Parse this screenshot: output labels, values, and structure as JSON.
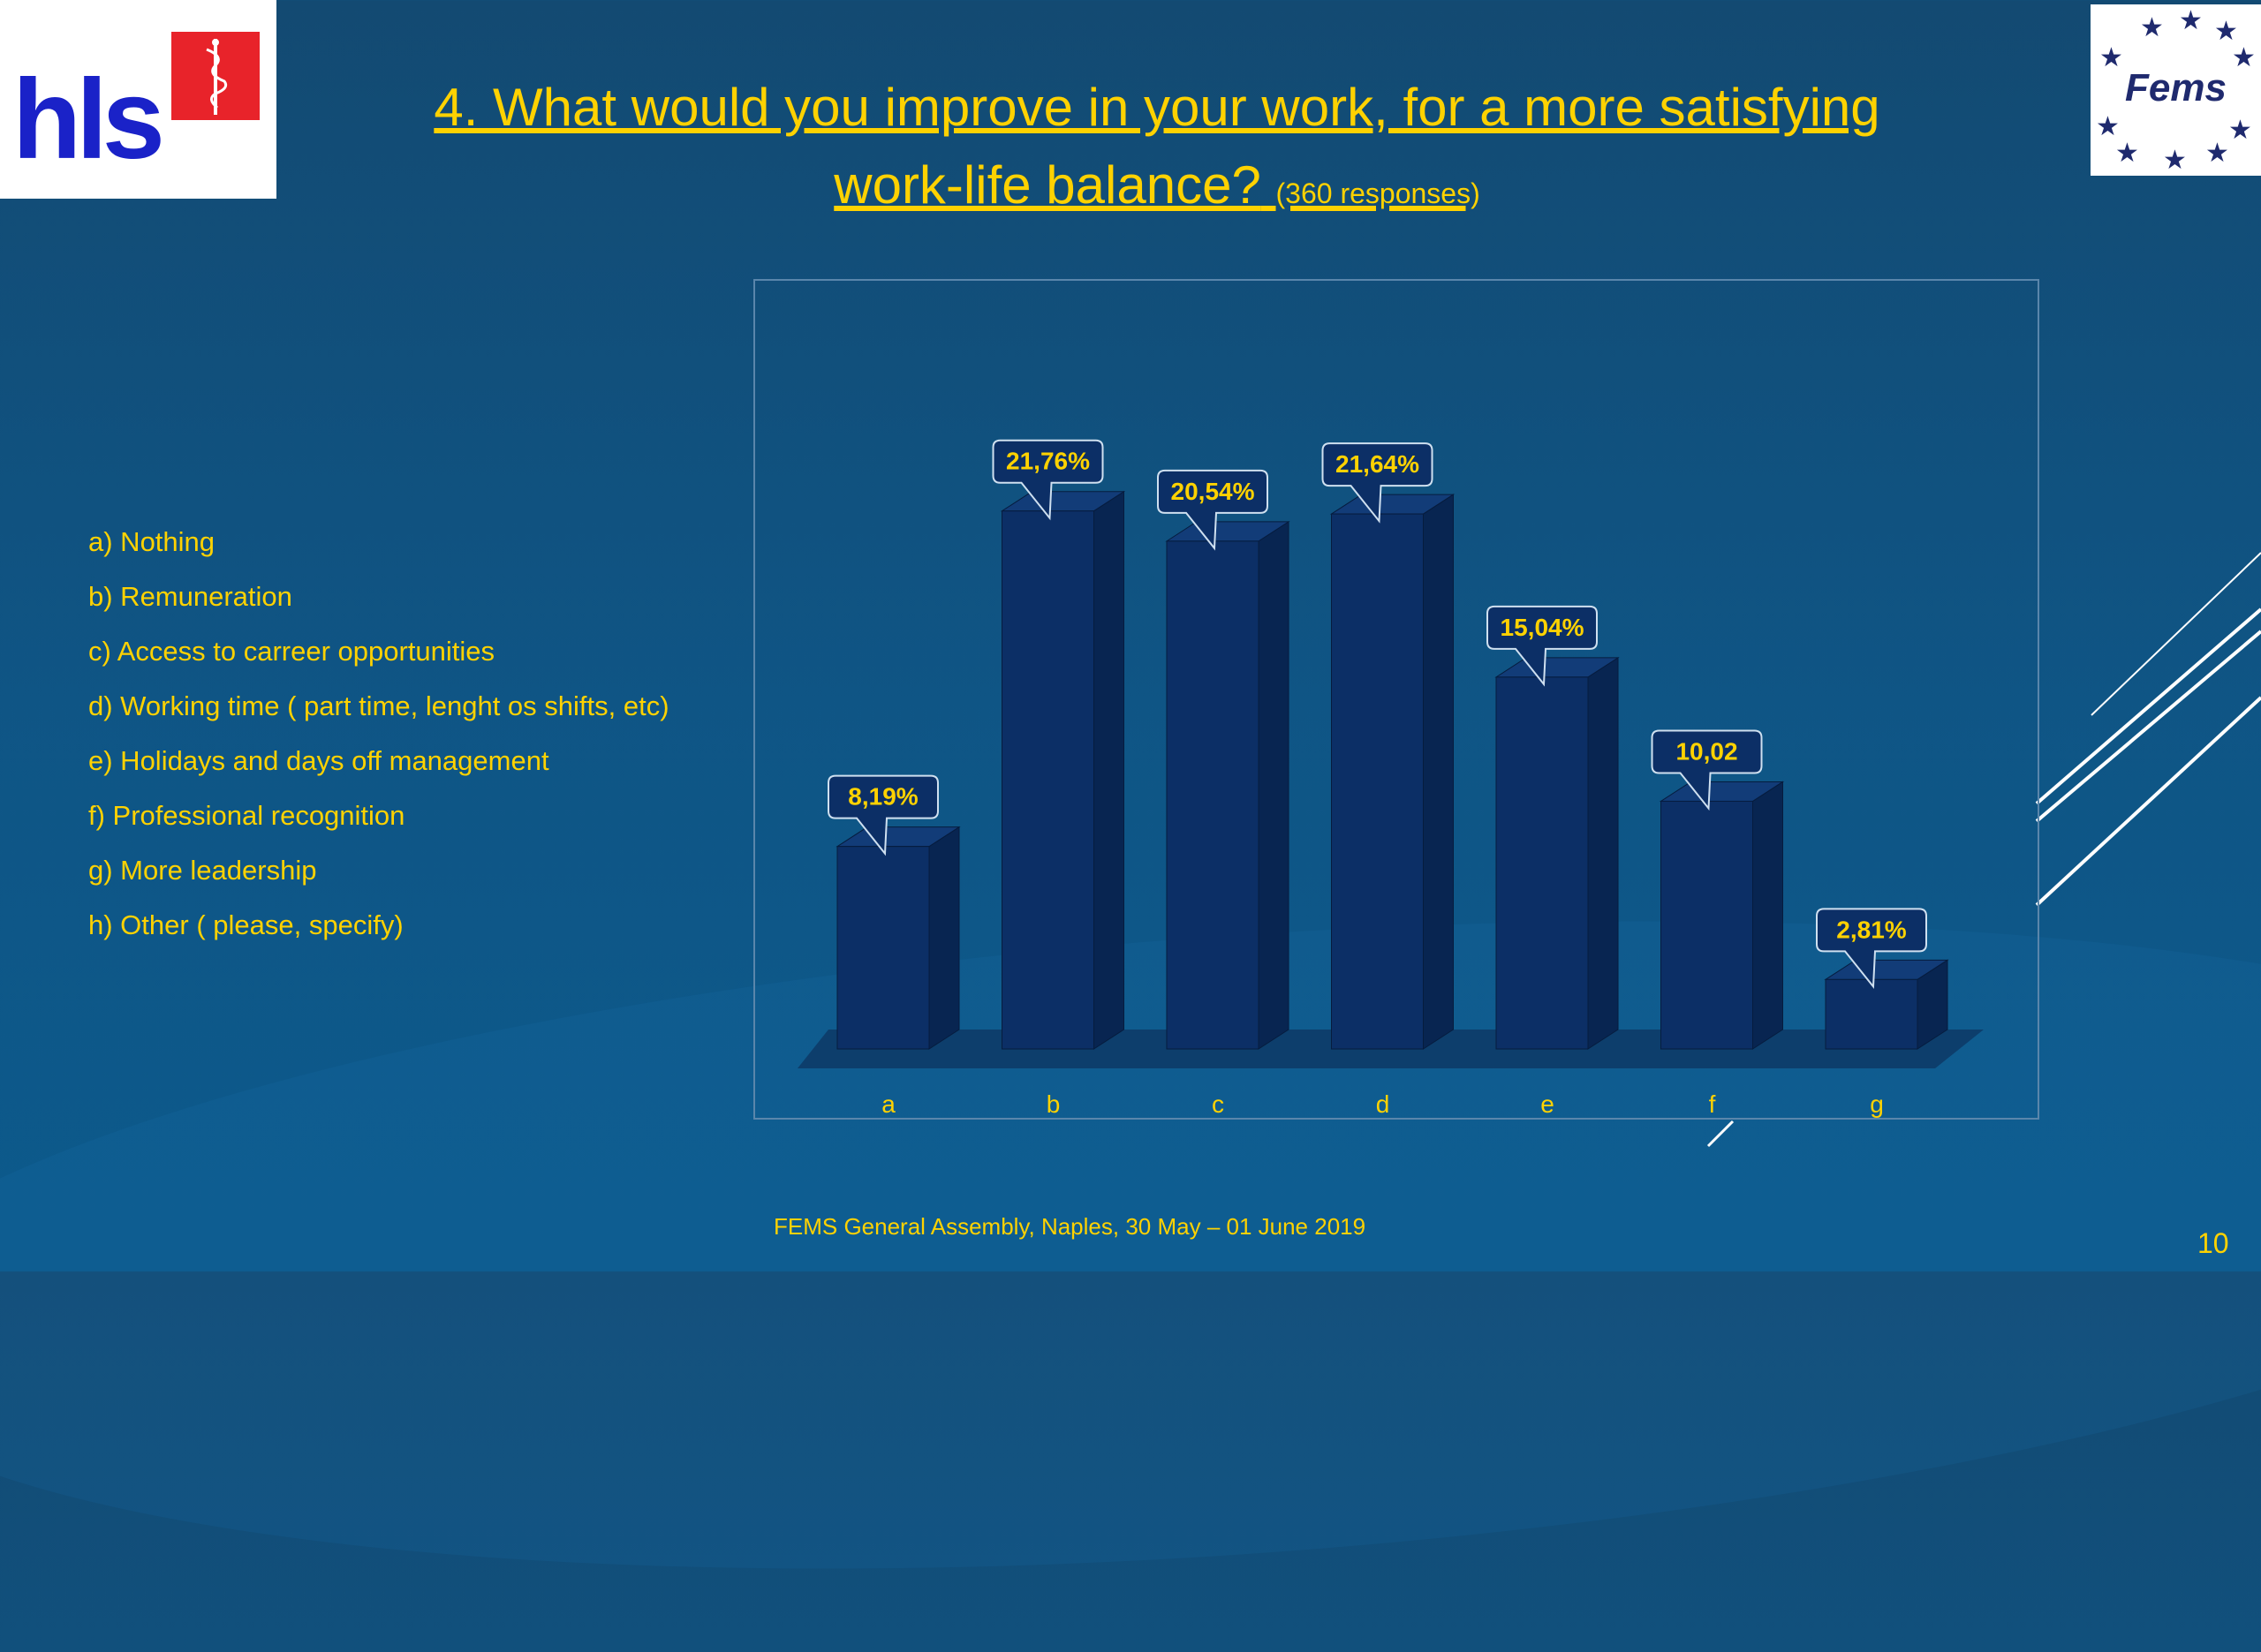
{
  "slide": {
    "title_line1": "4. What would you improve in your work, for a more satisfying",
    "title_line2": "work-life balance?",
    "subtitle": "(360 responses)",
    "footer": "FEMS General Assembly, Naples, 30 May – 01 June 2019",
    "page_number": "10"
  },
  "logos": {
    "left_text": "hls",
    "right_text": "Fems"
  },
  "legend": {
    "items": [
      "a) Nothing",
      "b) Remuneration",
      "c) Access to carreer opportunities",
      "d) Working time ( part time, lenght os shifts, etc)",
      "e) Holidays and days off management",
      "f) Professional recognition",
      "g) More leadership",
      "h) Other ( please, specify)"
    ]
  },
  "colors": {
    "background": "#134a72",
    "accent_text": "#ffd200",
    "bar_front": "#0c2f66",
    "bar_side": "#082551",
    "bar_top": "#123c78"
  },
  "chart_data": {
    "type": "bar",
    "categories": [
      "a",
      "b",
      "c",
      "d",
      "e",
      "f",
      "g"
    ],
    "values": [
      8.19,
      21.76,
      20.54,
      21.64,
      15.04,
      10.02,
      2.81
    ],
    "data_labels": [
      "8,19%",
      "21,76%",
      "20,54%",
      "21,64%",
      "15,04%",
      "10,02",
      "2,81%"
    ],
    "title": "",
    "xlabel": "",
    "ylabel": "",
    "ylim": [
      0,
      25
    ],
    "grid": false,
    "three_d": true
  }
}
